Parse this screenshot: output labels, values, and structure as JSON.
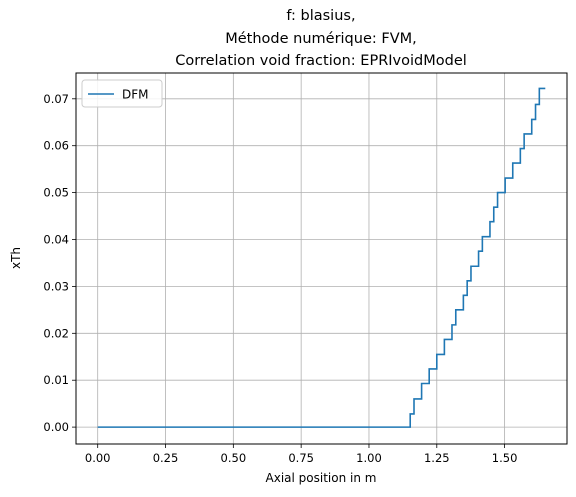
{
  "chart_data": {
    "type": "line",
    "title_lines": [
      "f: blasius,",
      "Méthode numérique: FVM,",
      "Correlation void fraction: EPRIvoidModel"
    ],
    "xlabel": "Axial position in m",
    "ylabel": "xTh",
    "xlim": [
      -0.08,
      1.73
    ],
    "ylim": [
      -0.0036,
      0.0755
    ],
    "xticks": [
      0.0,
      0.25,
      0.5,
      0.75,
      1.0,
      1.25,
      1.5
    ],
    "xtick_labels": [
      "0.00",
      "0.25",
      "0.50",
      "0.75",
      "1.00",
      "1.25",
      "1.50"
    ],
    "yticks": [
      0.0,
      0.01,
      0.02,
      0.03,
      0.04,
      0.05,
      0.06,
      0.07
    ],
    "ytick_labels": [
      "0.00",
      "0.01",
      "0.02",
      "0.03",
      "0.04",
      "0.05",
      "0.06",
      "0.07"
    ],
    "grid": true,
    "legend_position": "top-left",
    "series": [
      {
        "name": "DFM",
        "color": "#1f77b4",
        "step": true,
        "x": [
          0.0,
          1.14,
          1.152,
          1.166,
          1.18,
          1.194,
          1.208,
          1.222,
          1.236,
          1.25,
          1.264,
          1.278,
          1.292,
          1.306,
          1.32,
          1.334,
          1.348,
          1.362,
          1.376,
          1.39,
          1.404,
          1.418,
          1.432,
          1.446,
          1.46,
          1.474,
          1.488,
          1.502,
          1.516,
          1.53,
          1.544,
          1.558,
          1.572,
          1.586,
          1.6,
          1.614,
          1.628,
          1.65
        ],
        "y": [
          0.0,
          0.0,
          0.0028,
          0.006,
          0.006,
          0.0093,
          0.0093,
          0.0124,
          0.0124,
          0.0155,
          0.0155,
          0.0187,
          0.0187,
          0.0218,
          0.025,
          0.025,
          0.0281,
          0.0312,
          0.0343,
          0.0343,
          0.0375,
          0.0406,
          0.0406,
          0.0438,
          0.0469,
          0.05,
          0.05,
          0.0531,
          0.0531,
          0.0563,
          0.0563,
          0.0594,
          0.0625,
          0.0625,
          0.0656,
          0.0688,
          0.0722,
          0.0722
        ]
      }
    ]
  }
}
